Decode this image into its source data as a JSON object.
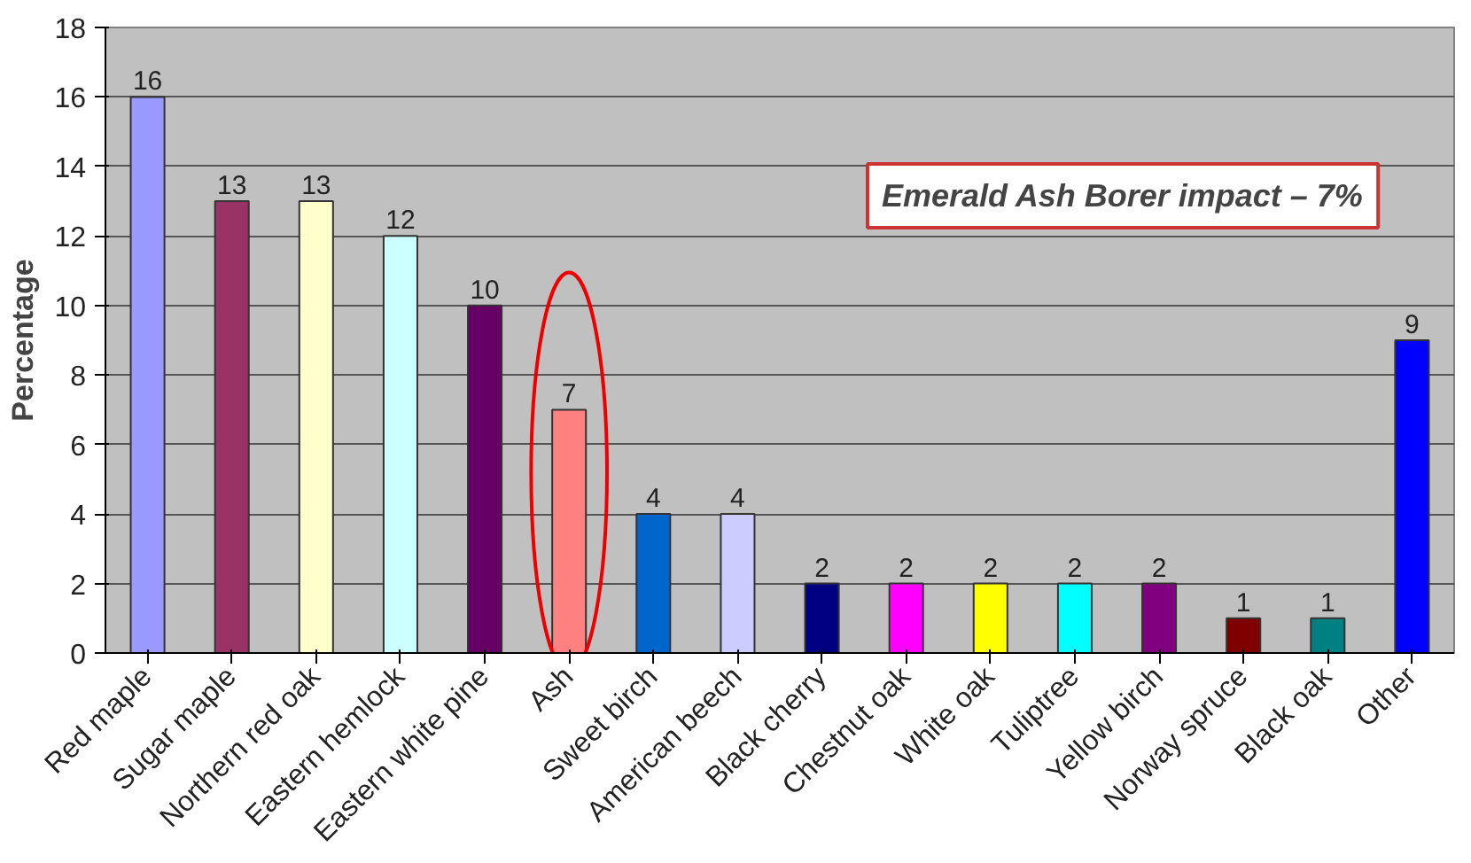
{
  "chart_data": {
    "type": "bar",
    "ylabel": "Percentage",
    "categories": [
      "Red maple",
      "Sugar maple",
      "Northern red oak",
      "Eastern hemlock",
      "Eastern white pine",
      "Ash",
      "Sweet birch",
      "American beech",
      "Black cherry",
      "Chestnut oak",
      "White oak",
      "Tuliptree",
      "Yellow birch",
      "Norway spruce",
      "Black oak",
      "Other"
    ],
    "values": [
      16,
      13,
      13,
      12,
      10,
      7,
      4,
      4,
      2,
      2,
      2,
      2,
      2,
      1,
      1,
      9
    ],
    "colors": [
      "#9999ff",
      "#993366",
      "#ffffcc",
      "#ccffff",
      "#660066",
      "#ff8080",
      "#0066cc",
      "#ccccff",
      "#000080",
      "#ff00ff",
      "#ffff00",
      "#00ffff",
      "#800080",
      "#800000",
      "#008080",
      "#0000ff"
    ],
    "ylim": [
      0,
      18
    ],
    "yticks": [
      0,
      2,
      4,
      6,
      8,
      10,
      12,
      14,
      16,
      18
    ],
    "grid": "y",
    "data_labels": true,
    "annotations": [
      "Emerald Ash Borer impact – 7%"
    ]
  }
}
